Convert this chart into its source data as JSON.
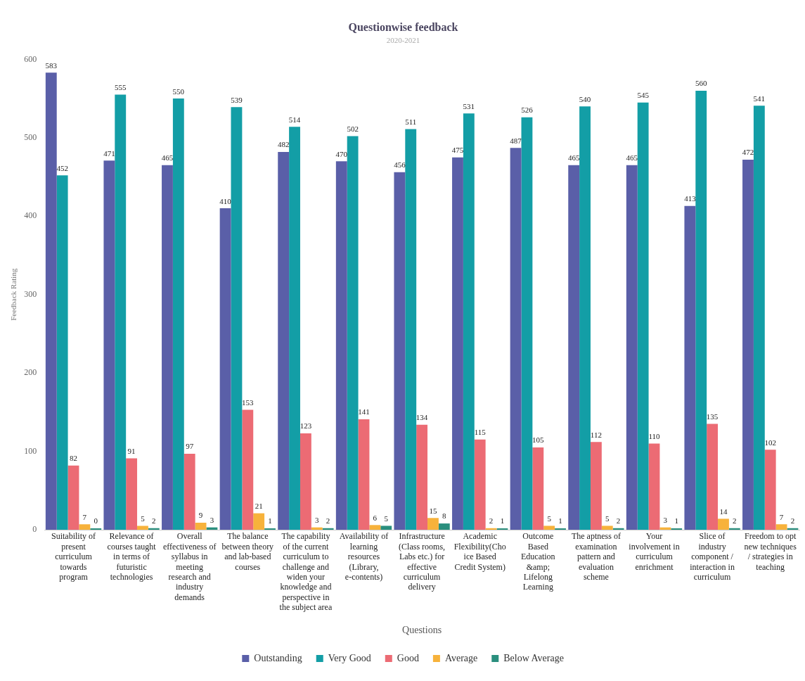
{
  "chart_data": {
    "type": "bar",
    "title": "Questionwise feedback",
    "subtitle": "2020-2021",
    "xlabel": "Questions",
    "ylabel": "Feedback Rating",
    "categories": [
      "Suitability of present curriculum towards program",
      "Relevance of courses taught in terms of futuristic technologies",
      "Overall effectiveness of syllabus in meeting research and industry demands",
      "The balance between theory and lab-based courses",
      "The capability of the current curriculum to challenge and widen your knowledge and perspective in the subject area",
      "Availability of learning resources (Library, e-contents)",
      "Infrastructure (Class rooms, Labs etc.) for effective curriculum delivery",
      "Academic Flexibility(Choice Based Credit System)",
      "Outcome Based Education &amp; Lifelong Learning",
      "The aptness of examination pattern and evaluation scheme",
      "Your involvement in curriculum enrichment",
      "Slice of industry component / interaction in curriculum",
      "Freedom to opt new techniques / strategies in teaching"
    ],
    "series": [
      {
        "name": "Outstanding",
        "color": "#5a5fa8",
        "values": [
          583,
          471,
          465,
          410,
          482,
          470,
          456,
          475,
          487,
          465,
          465,
          413,
          472
        ]
      },
      {
        "name": "Very Good",
        "color": "#139ea6",
        "values": [
          452,
          555,
          550,
          539,
          514,
          502,
          511,
          531,
          526,
          540,
          545,
          560,
          541
        ]
      },
      {
        "name": "Good",
        "color": "#ec6b74",
        "values": [
          82,
          91,
          97,
          153,
          123,
          141,
          134,
          115,
          105,
          112,
          110,
          135,
          102
        ]
      },
      {
        "name": "Average",
        "color": "#f7b23b",
        "values": [
          7,
          5,
          9,
          21,
          3,
          6,
          15,
          2,
          5,
          5,
          3,
          14,
          7
        ]
      },
      {
        "name": "Below Average",
        "color": "#2a8f7e",
        "values": [
          0,
          2,
          3,
          1,
          2,
          5,
          8,
          1,
          1,
          2,
          1,
          2,
          2
        ]
      }
    ],
    "ylim": [
      0,
      600
    ],
    "yticks": [
      0,
      100,
      200,
      300,
      400,
      500,
      600
    ],
    "grid": false,
    "legend": "bottom",
    "data_labels": true
  }
}
